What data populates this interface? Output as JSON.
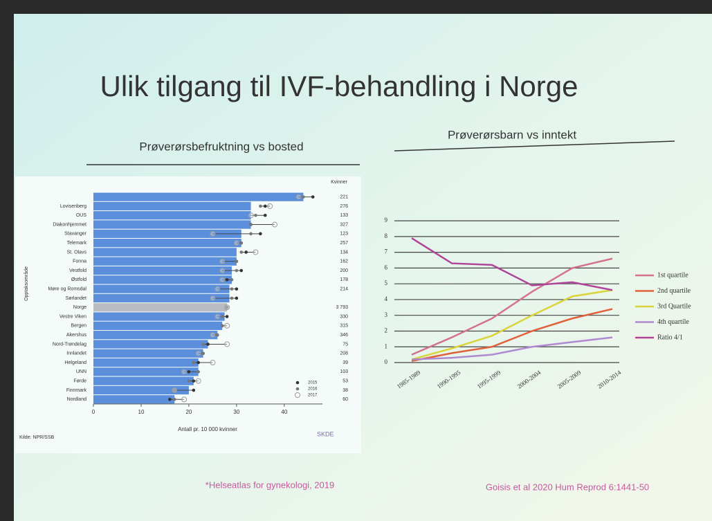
{
  "slide": {
    "title": "Ulik tilgang til IVF-behandling i Norge",
    "footnote_left": "*Helseatlas for gynekologi, 2019",
    "footnote_right": "Goisis et al 2020 Hum Reprod 6:1441-50"
  },
  "chart_data": [
    {
      "type": "hbar",
      "title": "Prøverørsbefruktning vs bosted",
      "x_label": "Antall pr. 10 000 kvinner",
      "y_label": "Opptaksområde",
      "source": "Kilde: NPR/SSB",
      "logo": "SKDE",
      "categories": [
        null,
        "Lovisenberg",
        "OUS",
        "Diakonhjemmet",
        "Stavanger",
        "Telemark",
        "St. Olavs",
        "Fonna",
        "Vestfold",
        "Østfold",
        "Møre og Romsdal",
        "Sørlandet",
        "Norge",
        "Vestre Viken",
        "Bergen",
        "Akershus",
        "Nord-Trøndelag",
        "Innlandet",
        "Helgeland",
        "UNN",
        "Førde",
        "Finnmark",
        "Nordland"
      ],
      "values": [
        44,
        33,
        33,
        33,
        31,
        31,
        30,
        30,
        29,
        29,
        28.5,
        28.5,
        28,
        27.5,
        27,
        26,
        24,
        23,
        22,
        22,
        21,
        20,
        17
      ],
      "color": "#5b8fdc",
      "highlight_index": 12,
      "highlight_color": "#b9bcc0",
      "series": [
        {
          "name": "2015",
          "color": "#333333",
          "values": [
            46,
            36,
            36,
            33,
            35,
            31,
            32,
            30,
            31,
            28,
            30,
            30,
            28,
            28,
            27,
            26,
            24,
            23,
            22,
            20,
            21,
            21,
            16
          ]
        },
        {
          "name": "2016",
          "color": "#777777",
          "values": [
            44,
            35,
            34,
            33,
            33,
            31,
            31,
            30,
            30,
            29,
            29,
            29,
            28,
            27,
            27,
            26,
            23,
            23,
            21,
            22,
            20,
            17,
            17
          ]
        },
        {
          "name": "2017",
          "color": "#ffffff",
          "values": [
            43,
            37,
            33,
            38,
            25,
            30,
            34,
            27,
            27,
            27,
            26,
            25,
            28,
            26,
            28,
            25,
            28,
            22,
            25,
            19,
            22,
            17,
            19
          ]
        }
      ],
      "kvinner": {
        "title": "Kvinner",
        "labels": [
          "221",
          "276",
          "133",
          "327",
          "123",
          "257",
          "134",
          "162",
          "200",
          "178",
          "214",
          null,
          "3 793",
          "330",
          "315",
          "346",
          "75",
          "208",
          "39",
          "103",
          "53",
          "38",
          "60"
        ]
      },
      "xlim": [
        0,
        48
      ],
      "xticks": [
        0,
        10,
        20,
        30,
        40
      ]
    },
    {
      "type": "line",
      "title": "Prøverørsbarn vs inntekt",
      "categories": [
        "1985-1989",
        "1990-1995",
        "1995-1999",
        "2000-2004",
        "2005-2009",
        "2010-2014"
      ],
      "series": [
        {
          "name": "1st quartile",
          "color": "#d4728e",
          "values": [
            0.5,
            1.6,
            2.8,
            4.5,
            6.0,
            6.6
          ]
        },
        {
          "name": "2nd quartile",
          "color": "#e0603a",
          "values": [
            0.1,
            0.6,
            1.0,
            2.0,
            2.8,
            3.4
          ]
        },
        {
          "name": "3rd Quartile",
          "color": "#d9d43a",
          "values": [
            0.2,
            0.9,
            1.7,
            3.0,
            4.2,
            4.6
          ]
        },
        {
          "name": "4th quartile",
          "color": "#b08ad0",
          "values": [
            0.2,
            0.3,
            0.5,
            1.0,
            1.3,
            1.6
          ]
        },
        {
          "name": "Ratio 4/1",
          "color": "#b0449a",
          "values": [
            7.9,
            6.3,
            6.2,
            4.9,
            5.1,
            4.6
          ]
        }
      ],
      "ylim": [
        0,
        9.4
      ],
      "yticks": [
        0,
        1,
        2,
        3,
        4,
        5,
        6,
        7,
        8,
        9
      ],
      "grid": true
    }
  ]
}
